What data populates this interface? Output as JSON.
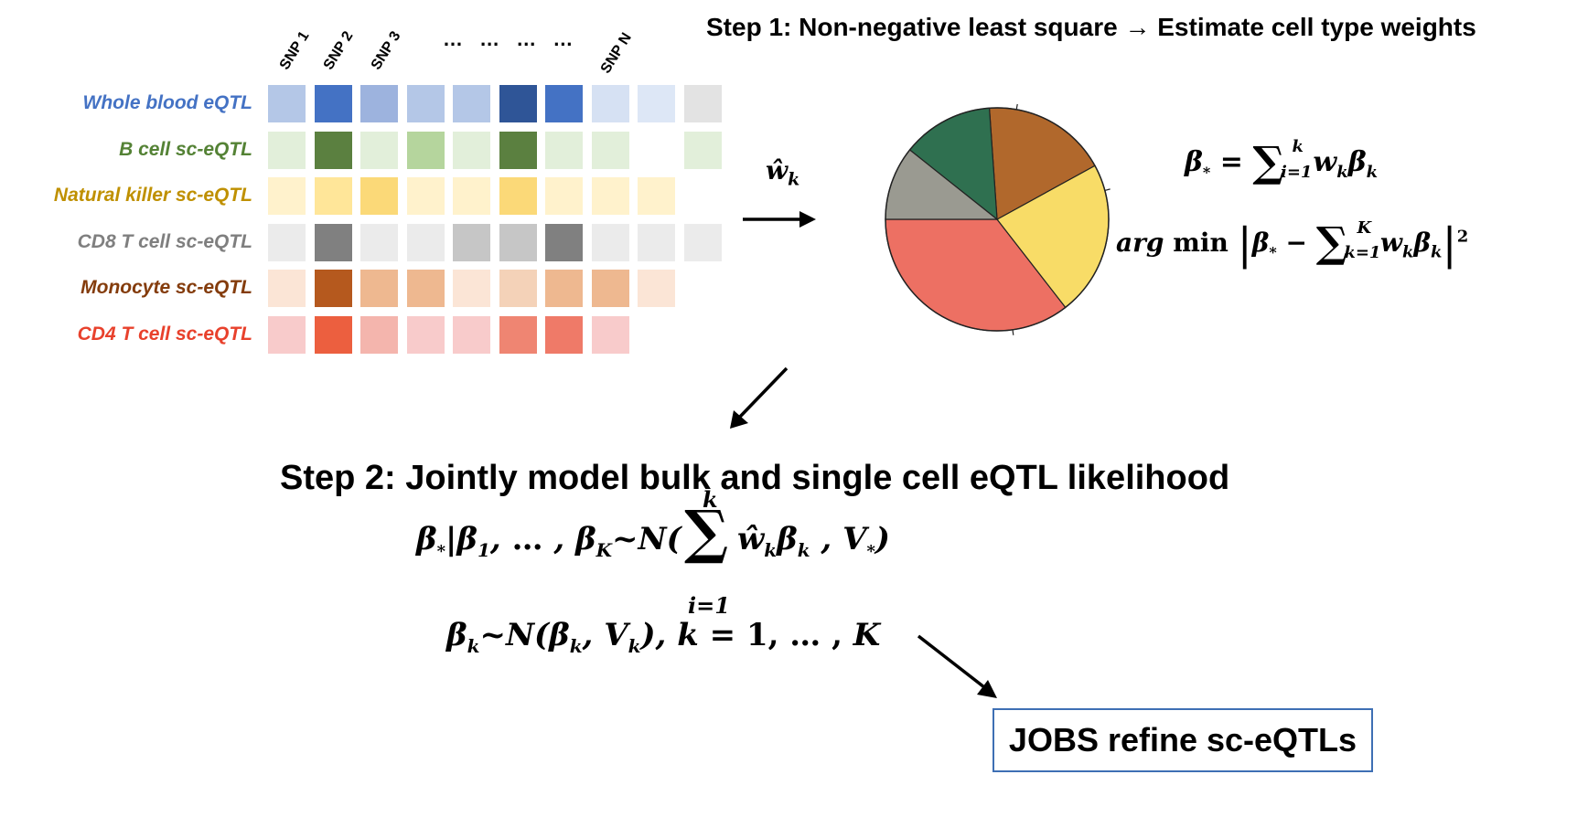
{
  "snp_labels": [
    "SNP 1",
    "SNP 2",
    "SNP 3",
    "SNP N"
  ],
  "snp_ellipsis": "… … … …",
  "rows": [
    {
      "label": "Whole blood eQTL",
      "label_color": "#4472c4",
      "cells": [
        "#b4c7e7",
        "#4472c4",
        "#9db3de",
        "#b4c7e7",
        "#b4c7e7",
        "#2f5597",
        "#4472c4",
        "#d6e1f3",
        "#dde7f6",
        "#e3e3e3"
      ]
    },
    {
      "label": "B cell sc-eQTL",
      "label_color": "#548235",
      "cells": [
        "#e2efda",
        "#5b8040",
        "#e2efda",
        "#b5d59d",
        "#e2efda",
        "#5b8040",
        "#e2efda",
        "#e2efda",
        null,
        "#e2efda"
      ]
    },
    {
      "label": "Natural killer sc-eQTL",
      "label_color": "#bf9000",
      "cells": [
        "#fff2cc",
        "#ffe699",
        "#fbd978",
        "#fff2cc",
        "#fff2cc",
        "#fbd978",
        "#fff2cc",
        "#fff2cc",
        "#fff2cc",
        null
      ]
    },
    {
      "label": "CD8 T cell sc-eQTL",
      "label_color": "#7f7f7f",
      "cells": [
        "#ebebeb",
        "#808080",
        "#ebebeb",
        "#ebebeb",
        "#c6c6c6",
        "#c6c6c6",
        "#808080",
        "#ebebeb",
        "#ebebeb",
        "#ebebeb"
      ]
    },
    {
      "label": "Monocyte sc-eQTL",
      "label_color": "#843c0c",
      "cells": [
        "#fbe5d6",
        "#b5591e",
        "#eeb890",
        "#eeb890",
        "#fbe5d6",
        "#f4d2b8",
        "#eeb890",
        "#eeb890",
        "#fbe5d6",
        null
      ]
    },
    {
      "label": "CD4 T cell sc-eQTL",
      "label_color": "#e8412c",
      "cells": [
        "#f8cbcb",
        "#ec5f3f",
        "#f4b5ad",
        "#f8cbcb",
        "#f8cbcb",
        "#ef8572",
        "#ef7a68",
        "#f8cbcb",
        null,
        null
      ]
    }
  ],
  "weights_label": "ŵ",
  "weights_sub": "k",
  "step1": "Step 1: Non-negative least square → Estimate cell type weights",
  "pie": {
    "slices": [
      {
        "color": "#ed7063",
        "value": 0.355
      },
      {
        "color": "#f8dc67",
        "value": 0.225
      },
      {
        "color": "#b1682c",
        "value": 0.181
      },
      {
        "color": "#2f7050",
        "value": 0.132
      },
      {
        "color": "#9a9a91",
        "value": 0.107
      }
    ]
  },
  "step2": "Step 2: Jointly model bulk and single cell eQTL likelihood",
  "result_box": "JOBS refine sc-eQTLs"
}
